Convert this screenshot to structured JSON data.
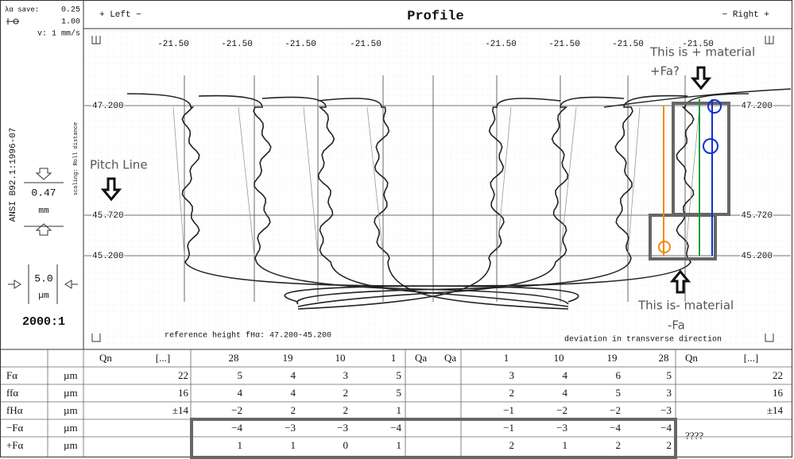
{
  "header": {
    "left": "+ Left −",
    "title": "Profile",
    "right": "− Right +"
  },
  "left_panel": {
    "lambda_label": "λα save:",
    "lambda_value": "0.25",
    "probe_value": "1.00",
    "speed": "v: 1 mm/s",
    "standard": "ANSI B92.1:1996-07",
    "scaling": "scaling: Roll distance",
    "scale_x_value": "0.47",
    "scale_x_unit": "mm",
    "scale_y_value": "5.0",
    "scale_y_unit": "µm",
    "magnification": "2000:1"
  },
  "plot": {
    "tooth_labels": [
      "-21.50",
      "-21.50",
      "-21.50",
      "-21.50",
      "-21.50",
      "-21.50",
      "-21.50",
      "-21.50"
    ],
    "left_heights": [
      "47.200",
      "45.720",
      "45.200"
    ],
    "right_heights": [
      "47.200",
      "45.720",
      "45.200"
    ],
    "reference_height": "reference height fHα:  47.200-45.200",
    "transverse_note": "deviation in transverse direction"
  },
  "annotations": {
    "pitch_line": "Pitch Line",
    "plus_material": "This is + material",
    "plus_fa": "+Fa?",
    "minus_material": "This is- material",
    "minus_fa": "-Fa"
  },
  "table": {
    "columns": [
      "Qn",
      "[...]",
      "28",
      "19",
      "10",
      "1",
      "Qa",
      "Qa",
      "1",
      "10",
      "19",
      "28",
      "Qn",
      "[...]"
    ],
    "rows": [
      {
        "label": "Fα",
        "unit": "µm",
        "cells": [
          "22",
          "5",
          "4",
          "3",
          "5",
          null,
          "3",
          "4",
          "6",
          "5",
          "22"
        ]
      },
      {
        "label": "ffα",
        "unit": "µm",
        "cells": [
          "16",
          "4",
          "4",
          "2",
          "5",
          null,
          "2",
          "4",
          "5",
          "3",
          "16"
        ]
      },
      {
        "label": "fHα",
        "unit": "µm",
        "cells": [
          "±14",
          "−2",
          "2",
          "2",
          "1",
          null,
          "−1",
          "−2",
          "−2",
          "−3",
          "±14"
        ]
      },
      {
        "label": "−Fα",
        "unit": "µm",
        "cells": [
          null,
          "−4",
          "−3",
          "−3",
          "−4",
          null,
          "−1",
          "−3",
          "−4",
          "−4",
          "????"
        ]
      },
      {
        "label": "+Fα",
        "unit": "µm",
        "cells": [
          null,
          "1",
          "1",
          "0",
          "1",
          null,
          "2",
          "1",
          "2",
          "2",
          null
        ]
      }
    ]
  }
}
